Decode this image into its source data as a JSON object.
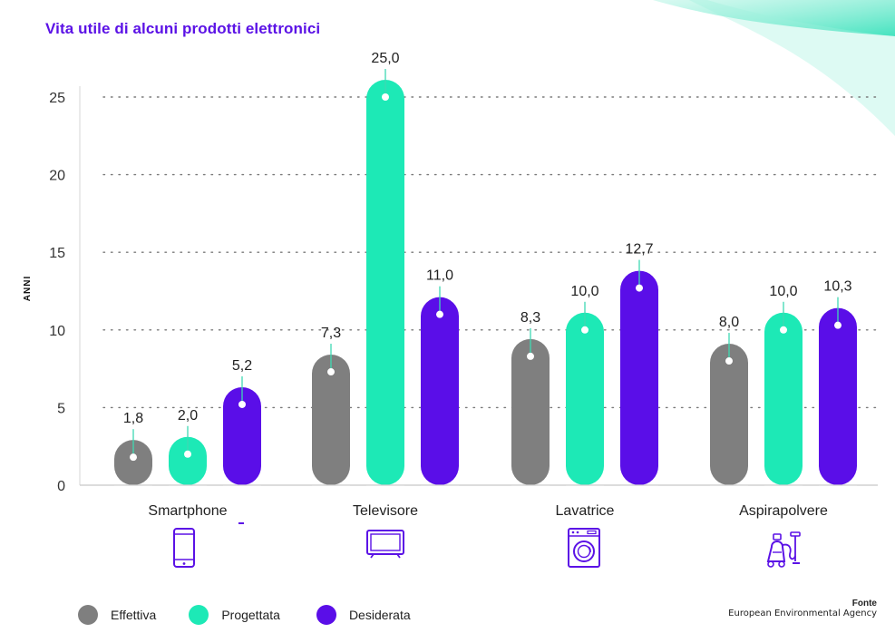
{
  "title": "Vita utile di alcuni prodotti elettronici",
  "colors": {
    "Effettiva": "#7f7f7f",
    "Progettata": "#1de9b6",
    "Desiderata": "#5a0ee8",
    "accent": "#5b12e6"
  },
  "chart_data": {
    "type": "bar",
    "ylabel": "ANNI",
    "xlabel": "",
    "ylim": [
      0,
      25
    ],
    "yticks": [
      0,
      5,
      10,
      15,
      20,
      25
    ],
    "grid": true,
    "categories": [
      "Smartphone",
      "Televisore",
      "Lavatrice",
      "Aspirapolvere"
    ],
    "category_icons": [
      "smartphone-icon",
      "television-icon",
      "washing-machine-icon",
      "vacuum-cleaner-icon"
    ],
    "series": [
      {
        "name": "Effettiva",
        "values": [
          1.8,
          7.3,
          8.3,
          8.0
        ],
        "labels": [
          "1,8",
          "7,3",
          "8,3",
          "8,0"
        ]
      },
      {
        "name": "Progettata",
        "values": [
          2.0,
          25.0,
          10.0,
          10.0
        ],
        "labels": [
          "2,0",
          "25,0",
          "10,0",
          "10,0"
        ]
      },
      {
        "name": "Desiderata",
        "values": [
          5.2,
          11.0,
          12.7,
          10.3
        ],
        "labels": [
          "5,2",
          "11,0",
          "12,7",
          "10,3"
        ]
      }
    ],
    "legend_position": "bottom-left"
  },
  "legend": [
    "Effettiva",
    "Progettata",
    "Desiderata"
  ],
  "source": {
    "title": "Fonte",
    "text": "European Environmental Agency"
  }
}
